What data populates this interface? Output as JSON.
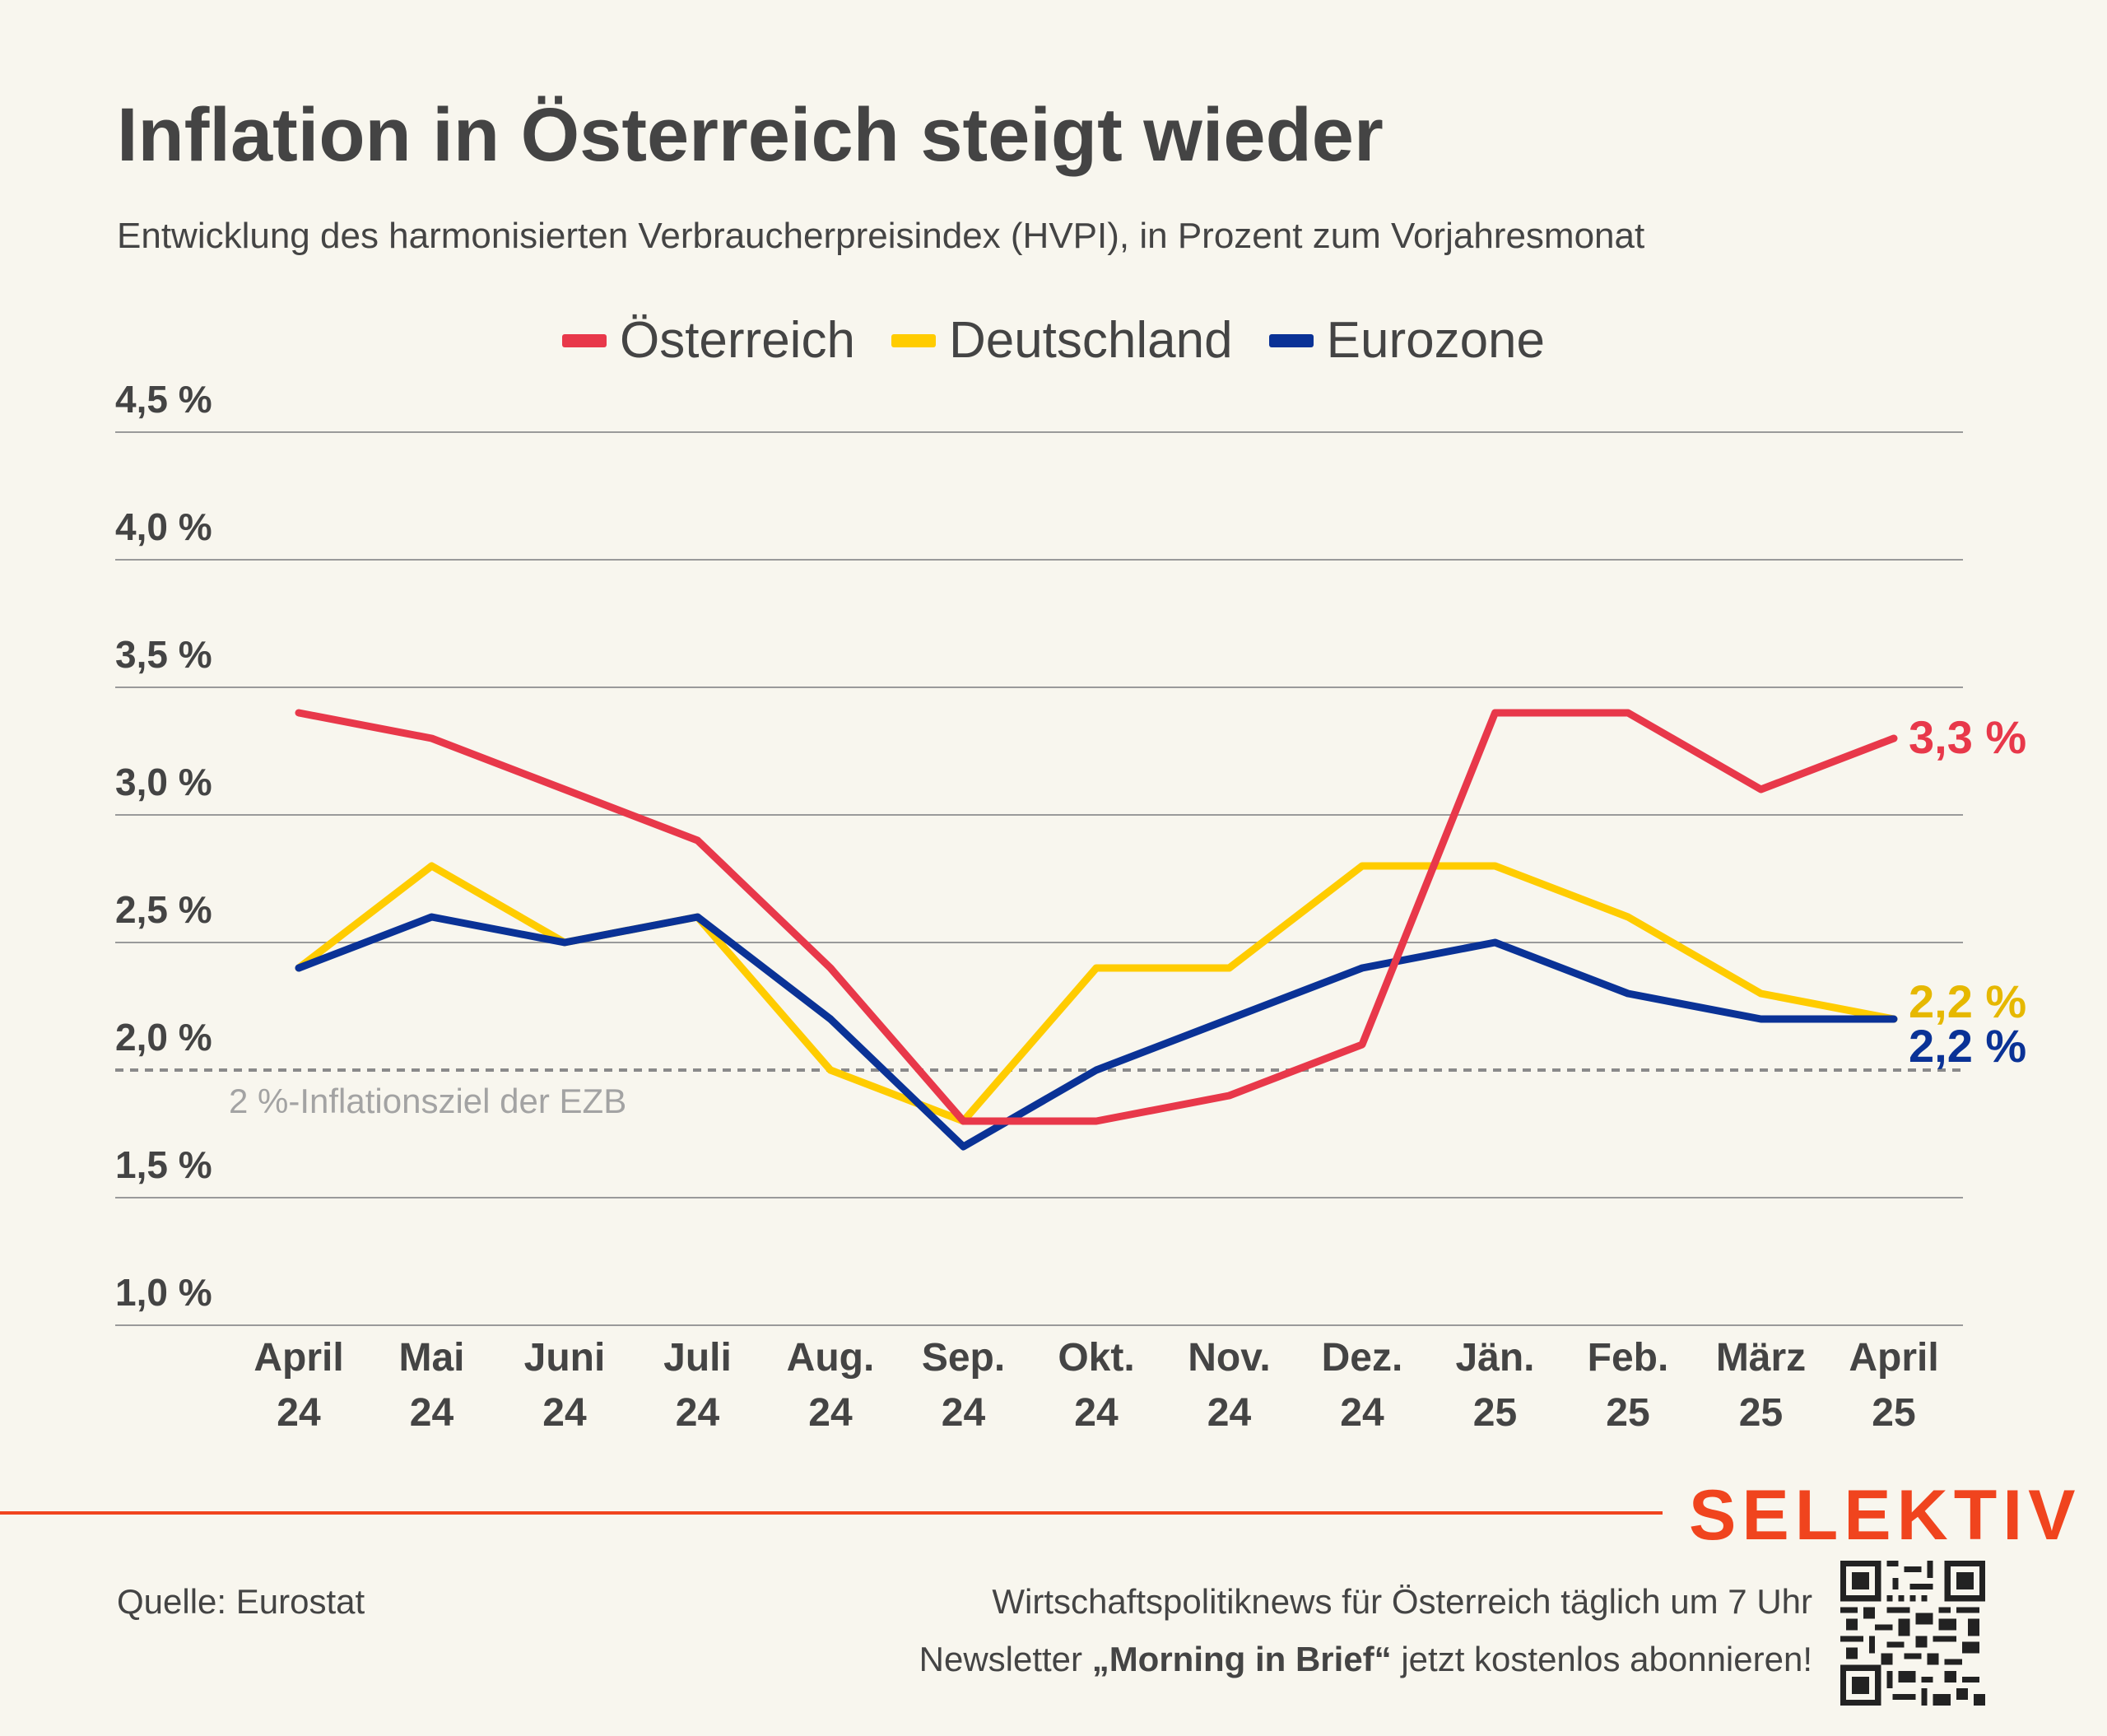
{
  "header": {
    "title": "Inflation in Österreich steigt wieder",
    "subtitle": "Entwicklung des harmonisierten Verbraucherpreisindex (HVPI), in Prozent zum Vorjahresmonat"
  },
  "chart_data": {
    "type": "line",
    "title": "Inflation in Österreich steigt wieder",
    "subtitle": "Entwicklung des harmonisierten Verbraucherpreisindex (HVPI), in Prozent zum Vorjahresmonat",
    "xlabel": "",
    "ylabel": "",
    "ylim": [
      1.0,
      4.5
    ],
    "grid": true,
    "legend_position": "top-center",
    "x": [
      {
        "month": "April",
        "year": "24"
      },
      {
        "month": "Mai",
        "year": "24"
      },
      {
        "month": "Juni",
        "year": "24"
      },
      {
        "month": "Juli",
        "year": "24"
      },
      {
        "month": "Aug.",
        "year": "24"
      },
      {
        "month": "Sep.",
        "year": "24"
      },
      {
        "month": "Okt.",
        "year": "24"
      },
      {
        "month": "Nov.",
        "year": "24"
      },
      {
        "month": "Dez.",
        "year": "24"
      },
      {
        "month": "Jän.",
        "year": "25"
      },
      {
        "month": "Feb.",
        "year": "25"
      },
      {
        "month": "März",
        "year": "25"
      },
      {
        "month": "April",
        "year": "25"
      }
    ],
    "yticks": [
      {
        "value": 4.5,
        "label": "4,5 %"
      },
      {
        "value": 4.0,
        "label": "4,0 %"
      },
      {
        "value": 3.5,
        "label": "3,5 %"
      },
      {
        "value": 3.0,
        "label": "3,0 %"
      },
      {
        "value": 2.5,
        "label": "2,5 %"
      },
      {
        "value": 2.0,
        "label": "2,0 %"
      },
      {
        "value": 1.5,
        "label": "1,5 %"
      },
      {
        "value": 1.0,
        "label": "1,0 %"
      }
    ],
    "series": [
      {
        "name": "Deutschland",
        "color": "#ffcc00",
        "label_color": "#e6b800",
        "values": [
          2.4,
          2.8,
          2.5,
          2.6,
          2.0,
          1.8,
          2.4,
          2.4,
          2.8,
          2.8,
          2.6,
          2.3,
          2.2
        ],
        "end_label": "2,2 %"
      },
      {
        "name": "Eurozone",
        "color": "#0a3296",
        "label_color": "#0a3296",
        "values": [
          2.4,
          2.6,
          2.5,
          2.6,
          2.2,
          1.7,
          2.0,
          2.2,
          2.4,
          2.5,
          2.3,
          2.2,
          2.2
        ],
        "end_label": "2,2 %"
      },
      {
        "name": "Österreich",
        "color": "#e8384a",
        "label_color": "#e8384a",
        "values": [
          3.4,
          3.3,
          3.1,
          2.9,
          2.4,
          1.8,
          1.8,
          1.9,
          2.1,
          3.4,
          3.4,
          3.1,
          3.3
        ],
        "end_label": "3,3 %"
      }
    ],
    "reference_line": {
      "value": 2.0,
      "label": "2 %-Inflationsziel der EZB",
      "style": "dashed"
    }
  },
  "footer": {
    "source": "Quelle: Eurostat",
    "brand": "SELEKTIV",
    "brand_color": "#f0441e",
    "promo_line1": "Wirtschaftspolitiknews für Österreich täglich um 7 Uhr",
    "promo_line2_prefix": "Newsletter ",
    "promo_line2_bold": "„Morning in Brief“",
    "promo_line2_suffix": " jetzt kostenlos abonnieren!"
  }
}
